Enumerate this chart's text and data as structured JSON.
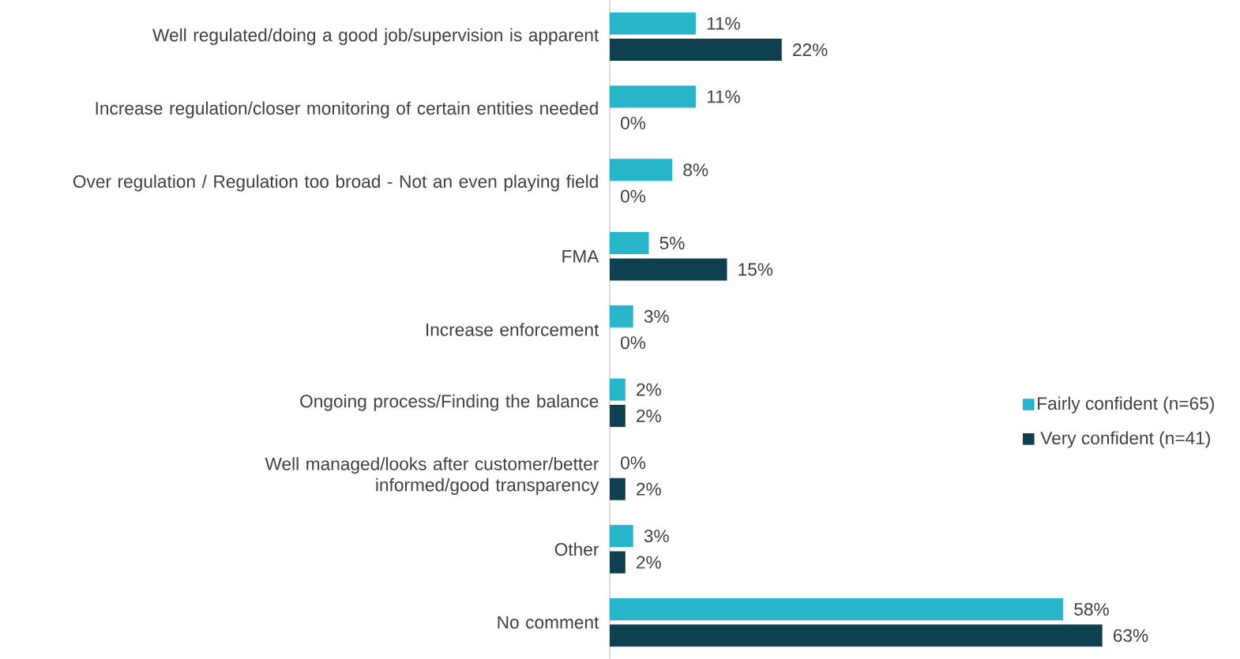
{
  "chart_data": {
    "type": "bar",
    "orientation": "horizontal",
    "tick_labels": "y",
    "legend": "right",
    "categories": [
      "Well regulated/doing a good job/supervision is apparent",
      "Increase regulation/closer monitoring of certain entities needed",
      "Over regulation / Regulation too broad - Not an even playing field",
      "FMA",
      "Increase enforcement",
      "Ongoing process/Finding the balance",
      "Well managed/looks after customer/better informed/good transparency",
      "Other",
      "No comment"
    ],
    "series": [
      {
        "name": "Fairly confident (n=65)",
        "color": "#29b5c9",
        "values": [
          11,
          11,
          8,
          5,
          3,
          2,
          0,
          3,
          58
        ],
        "value_labels": [
          "11%",
          "11%",
          "8%",
          "5%",
          "3%",
          "2%",
          "0%",
          "3%",
          "58%"
        ]
      },
      {
        "name": "Very confident (n=41)",
        "color": "#0f4050",
        "values": [
          22,
          0,
          0,
          15,
          0,
          2,
          2,
          2,
          63
        ],
        "value_labels": [
          "22%",
          "0%",
          "0%",
          "15%",
          "0%",
          "2%",
          "2%",
          "2%",
          "63%"
        ]
      }
    ]
  }
}
